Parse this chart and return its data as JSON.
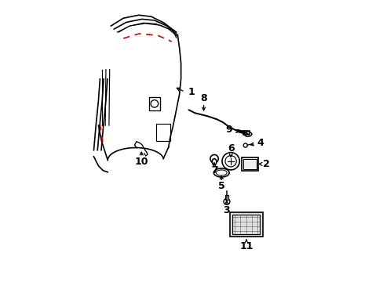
{
  "background": "#ffffff",
  "line_color": "#000000",
  "red_color": "#cc0000",
  "label_color": "#000000"
}
